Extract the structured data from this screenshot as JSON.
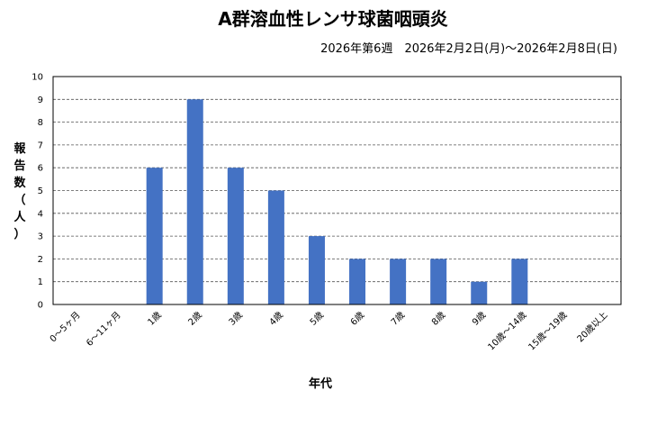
{
  "chart_data": {
    "type": "bar",
    "title": "A群溶血性レンサ球菌咽頭炎",
    "subtitle": "2026年第6週　2026年2月2日(月)～2026年2月8日(日)",
    "xlabel": "年代",
    "ylabel": "報告数（人）",
    "categories": [
      "0～5ヶ月",
      "6～11ヶ月",
      "1歳",
      "2歳",
      "3歳",
      "4歳",
      "5歳",
      "6歳",
      "7歳",
      "8歳",
      "9歳",
      "10歳～14歳",
      "15歳～19歳",
      "20歳以上"
    ],
    "values": [
      0,
      0,
      6,
      9,
      6,
      5,
      3,
      2,
      2,
      2,
      1,
      2,
      0,
      0
    ],
    "ylim": [
      0,
      10
    ],
    "yticks": [
      "0",
      "1",
      "2",
      "3",
      "4",
      "5",
      "6",
      "7",
      "8",
      "9",
      "10"
    ],
    "grid": true,
    "legend": "none",
    "bar_color": "#4472C4"
  }
}
